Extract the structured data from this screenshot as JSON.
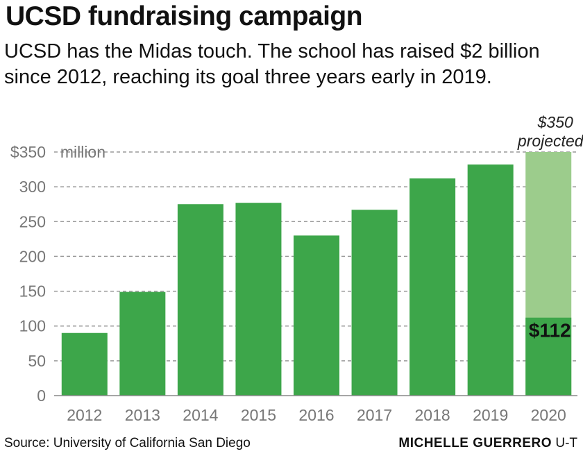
{
  "header": {
    "title": "UCSD fundraising campaign",
    "subtitle": "UCSD has the Midas touch. The school has raised $2 billion since 2012, reaching its goal three years early in 2019."
  },
  "chart_data": {
    "type": "bar",
    "categories": [
      "2012",
      "2013",
      "2014",
      "2015",
      "2016",
      "2017",
      "2018",
      "2019",
      "2020"
    ],
    "series": [
      {
        "values": [
          90,
          149,
          275,
          277,
          230,
          267,
          312,
          332,
          112
        ]
      }
    ],
    "projected": {
      "category": "2020",
      "value": 350,
      "label": "$350",
      "label_line2": "projected"
    },
    "value_label_2020": "$112",
    "ylim": [
      0,
      350
    ],
    "yticks": [
      0,
      50,
      100,
      150,
      200,
      250,
      300,
      350
    ],
    "ytick_labels": [
      "0",
      "50",
      "100",
      "150",
      "200",
      "250",
      "300",
      "$350"
    ],
    "yunit_label": "million",
    "grid": true,
    "colors": {
      "bar": "#3da64a",
      "projected": "#9ccc8c",
      "grid": "#9a9a9a",
      "tick_text": "#777777"
    }
  },
  "footer": {
    "source": "Source: University of California San Diego",
    "credit_name": "MICHELLE GUERRERO",
    "credit_org": "U-T"
  }
}
